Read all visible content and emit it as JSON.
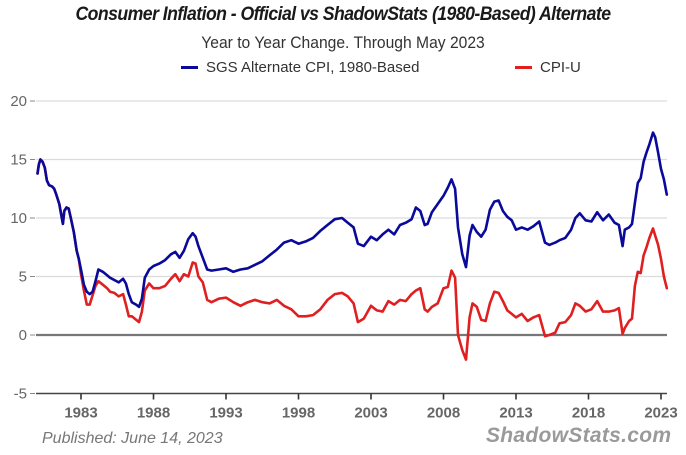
{
  "chart_data": {
    "type": "line",
    "title": "Consumer Inflation - Official vs ShadowStats (1980-Based) Alternate",
    "subtitle": "Year to Year Change. Through May 2023",
    "xlabel": "",
    "ylabel": "",
    "xlim": [
      1980.0,
      2023.5
    ],
    "ylim": [
      -5,
      20
    ],
    "yticks": [
      -5,
      0,
      5,
      10,
      15,
      20
    ],
    "xticks": [
      1983,
      1988,
      1993,
      1998,
      2003,
      2008,
      2013,
      2018,
      2023
    ],
    "xtick_labels": [
      "1983",
      "1988",
      "1993",
      "1998",
      "2003",
      "2008",
      "2013",
      "2018",
      "2023"
    ],
    "ytick_labels": [
      "-5",
      "0",
      "5",
      "10",
      "15",
      "20"
    ],
    "grid": true,
    "legend_position": "top-center",
    "series": [
      {
        "name": "SGS Alternate CPI, 1980-Based",
        "color": "#0a0a9a",
        "x": [
          1980.0,
          1980.1,
          1980.2,
          1980.35,
          1980.5,
          1980.65,
          1980.8,
          1981.0,
          1981.15,
          1981.3,
          1981.5,
          1981.65,
          1981.75,
          1981.85,
          1982.0,
          1982.15,
          1982.3,
          1982.5,
          1982.7,
          1982.85,
          1983.0,
          1983.2,
          1983.4,
          1983.6,
          1983.8,
          1984.0,
          1984.2,
          1984.5,
          1984.8,
          1985.0,
          1985.3,
          1985.6,
          1985.9,
          1986.1,
          1986.3,
          1986.5,
          1986.8,
          1987.0,
          1987.2,
          1987.4,
          1987.7,
          1988.0,
          1988.4,
          1988.8,
          1989.2,
          1989.5,
          1989.8,
          1990.1,
          1990.4,
          1990.7,
          1990.9,
          1991.1,
          1991.4,
          1991.7,
          1992.0,
          1992.5,
          1993.0,
          1993.5,
          1994.0,
          1994.5,
          1995.0,
          1995.5,
          1996.0,
          1996.5,
          1997.0,
          1997.5,
          1998.0,
          1998.5,
          1999.0,
          1999.5,
          2000.0,
          2000.5,
          2001.0,
          2001.4,
          2001.8,
          2002.1,
          2002.5,
          2003.0,
          2003.4,
          2003.8,
          2004.2,
          2004.6,
          2005.0,
          2005.4,
          2005.8,
          2006.1,
          2006.4,
          2006.7,
          2006.9,
          2007.2,
          2007.6,
          2008.0,
          2008.3,
          2008.55,
          2008.8,
          2009.0,
          2009.3,
          2009.55,
          2009.8,
          2010.0,
          2010.3,
          2010.6,
          2010.9,
          2011.2,
          2011.5,
          2011.8,
          2012.1,
          2012.4,
          2012.7,
          2013.0,
          2013.4,
          2013.8,
          2014.2,
          2014.6,
          2015.0,
          2015.3,
          2015.7,
          2016.0,
          2016.4,
          2016.8,
          2017.1,
          2017.4,
          2017.8,
          2018.2,
          2018.6,
          2019.0,
          2019.4,
          2019.8,
          2020.1,
          2020.35,
          2020.5,
          2020.8,
          2021.0,
          2021.2,
          2021.4,
          2021.6,
          2021.8,
          2022.0,
          2022.2,
          2022.45,
          2022.6,
          2022.8,
          2023.0,
          2023.2,
          2023.4
        ],
        "y": [
          13.8,
          14.6,
          15.0,
          14.8,
          14.3,
          13.2,
          12.8,
          12.7,
          12.5,
          12.0,
          11.2,
          10.2,
          9.5,
          10.6,
          10.9,
          10.8,
          10.0,
          8.8,
          7.2,
          6.5,
          5.6,
          4.3,
          3.7,
          3.5,
          3.7,
          4.6,
          5.6,
          5.4,
          5.1,
          4.9,
          4.7,
          4.5,
          4.8,
          4.4,
          3.5,
          2.8,
          2.6,
          2.4,
          3.1,
          4.9,
          5.6,
          5.9,
          6.1,
          6.4,
          6.9,
          7.1,
          6.6,
          7.2,
          8.2,
          8.7,
          8.4,
          7.6,
          6.6,
          5.6,
          5.5,
          5.6,
          5.7,
          5.4,
          5.6,
          5.7,
          6.0,
          6.3,
          6.8,
          7.3,
          7.9,
          8.1,
          7.8,
          8.0,
          8.3,
          8.9,
          9.4,
          9.9,
          10.0,
          9.6,
          9.2,
          7.8,
          7.6,
          8.4,
          8.1,
          8.6,
          9.0,
          8.6,
          9.4,
          9.6,
          9.9,
          10.9,
          10.6,
          9.4,
          9.5,
          10.5,
          11.2,
          11.9,
          12.6,
          13.3,
          12.5,
          9.2,
          6.9,
          5.8,
          8.5,
          9.4,
          8.8,
          8.4,
          9.0,
          10.7,
          11.4,
          11.5,
          10.6,
          10.1,
          9.8,
          9.0,
          9.2,
          9.0,
          9.3,
          9.7,
          7.9,
          7.7,
          7.9,
          8.1,
          8.3,
          9.0,
          10.0,
          10.4,
          9.8,
          9.7,
          10.5,
          9.8,
          10.3,
          9.6,
          9.4,
          7.6,
          9.0,
          9.2,
          9.5,
          11.3,
          13.0,
          13.4,
          14.8,
          15.6,
          16.3,
          17.3,
          16.9,
          15.6,
          14.2,
          13.3,
          12.0
        ]
      },
      {
        "name": "CPI-U",
        "color": "#e02020",
        "x": [
          1980.0,
          1980.1,
          1980.2,
          1980.35,
          1980.5,
          1980.65,
          1980.8,
          1981.0,
          1981.15,
          1981.3,
          1981.5,
          1981.65,
          1981.75,
          1981.85,
          1982.0,
          1982.15,
          1982.3,
          1982.5,
          1982.7,
          1982.85,
          1983.0,
          1983.2,
          1983.4,
          1983.6,
          1983.8,
          1984.0,
          1984.2,
          1984.5,
          1984.8,
          1985.0,
          1985.3,
          1985.6,
          1985.9,
          1986.1,
          1986.3,
          1986.5,
          1986.8,
          1987.0,
          1987.2,
          1987.4,
          1987.7,
          1988.0,
          1988.4,
          1988.8,
          1989.2,
          1989.5,
          1989.8,
          1990.1,
          1990.4,
          1990.7,
          1990.9,
          1991.1,
          1991.4,
          1991.7,
          1992.0,
          1992.5,
          1993.0,
          1993.5,
          1994.0,
          1994.5,
          1995.0,
          1995.5,
          1996.0,
          1996.5,
          1997.0,
          1997.5,
          1998.0,
          1998.5,
          1999.0,
          1999.5,
          2000.0,
          2000.5,
          2001.0,
          2001.4,
          2001.8,
          2002.1,
          2002.5,
          2003.0,
          2003.4,
          2003.8,
          2004.2,
          2004.6,
          2005.0,
          2005.4,
          2005.8,
          2006.1,
          2006.4,
          2006.7,
          2006.9,
          2007.2,
          2007.6,
          2008.0,
          2008.3,
          2008.55,
          2008.8,
          2009.0,
          2009.3,
          2009.55,
          2009.8,
          2010.0,
          2010.3,
          2010.6,
          2010.9,
          2011.2,
          2011.5,
          2011.8,
          2012.1,
          2012.4,
          2012.7,
          2013.0,
          2013.4,
          2013.8,
          2014.2,
          2014.6,
          2015.0,
          2015.3,
          2015.7,
          2016.0,
          2016.4,
          2016.8,
          2017.1,
          2017.4,
          2017.8,
          2018.2,
          2018.6,
          2019.0,
          2019.4,
          2019.8,
          2020.1,
          2020.35,
          2020.5,
          2020.8,
          2021.0,
          2021.2,
          2021.4,
          2021.6,
          2021.8,
          2022.0,
          2022.2,
          2022.45,
          2022.6,
          2022.8,
          2023.0,
          2023.2,
          2023.4
        ],
        "y": [
          13.8,
          14.6,
          15.0,
          14.8,
          14.3,
          13.2,
          12.8,
          12.7,
          12.5,
          12.0,
          11.2,
          10.2,
          9.5,
          10.6,
          10.9,
          10.8,
          10.0,
          8.8,
          7.2,
          6.5,
          5.2,
          3.8,
          2.6,
          2.6,
          3.4,
          4.2,
          4.6,
          4.3,
          4.0,
          3.7,
          3.6,
          3.3,
          3.5,
          2.6,
          1.6,
          1.6,
          1.3,
          1.1,
          2.0,
          3.8,
          4.4,
          4.0,
          4.0,
          4.2,
          4.8,
          5.2,
          4.6,
          5.2,
          5.0,
          6.2,
          6.1,
          5.0,
          4.5,
          3.0,
          2.8,
          3.1,
          3.2,
          2.8,
          2.5,
          2.8,
          3.0,
          2.8,
          2.7,
          3.0,
          2.5,
          2.2,
          1.6,
          1.6,
          1.7,
          2.2,
          3.0,
          3.5,
          3.6,
          3.3,
          2.7,
          1.1,
          1.4,
          2.5,
          2.1,
          2.0,
          2.9,
          2.6,
          3.0,
          2.9,
          3.5,
          3.8,
          4.0,
          2.2,
          2.0,
          2.4,
          2.7,
          4.0,
          4.1,
          5.5,
          4.9,
          0.0,
          -1.3,
          -2.1,
          1.5,
          2.7,
          2.4,
          1.3,
          1.2,
          2.7,
          3.7,
          3.6,
          2.9,
          2.1,
          1.8,
          1.5,
          1.8,
          1.2,
          1.5,
          1.7,
          -0.1,
          0.0,
          0.2,
          1.0,
          1.1,
          1.7,
          2.7,
          2.5,
          2.0,
          2.2,
          2.9,
          2.0,
          2.0,
          2.1,
          2.3,
          0.1,
          0.6,
          1.2,
          1.4,
          4.2,
          5.4,
          5.3,
          6.8,
          7.5,
          8.3,
          9.1,
          8.5,
          7.7,
          6.5,
          5.0,
          4.0
        ]
      }
    ]
  },
  "footer": {
    "published": "Published: June 14, 2023",
    "brand": "ShadowStats.com"
  }
}
